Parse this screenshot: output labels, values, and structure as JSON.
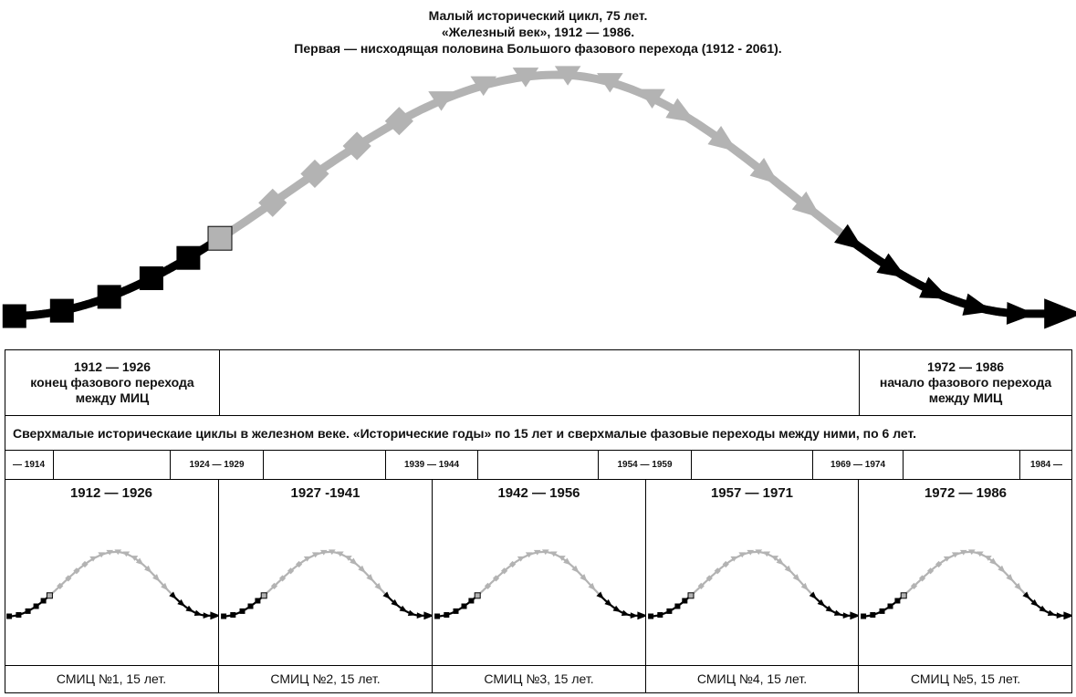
{
  "title": {
    "line1": "Малый исторический цикл, 75 лет.",
    "line2": "«Железный век», 1912 — 1986.",
    "line3": "Первая — нисходящая половина Большого фазового перехода (1912 - 2061)."
  },
  "phase_end": {
    "years": "1912 — 1926",
    "line1": "конец фазового перехода",
    "line2": "между МИЦ"
  },
  "phase_start": {
    "years": "1972 — 1986",
    "line1": "начало фазового перехода",
    "line2": "между МИЦ"
  },
  "super_small_text": "Сверхмалые историческаие циклы в железном  веке.  «Исторические годы» по 15 лет и сверхмалые фазовые переходы между ними,   по 6 лет.",
  "transitions": [
    "— 1914",
    "1924 — 1929",
    "1939 — 1944",
    "1954 — 1959",
    "1969 — 1974",
    "1984 —"
  ],
  "cycles": [
    {
      "years": "1912 — 1926",
      "label": "СМИЦ №1, 15 лет."
    },
    {
      "years": "1927 -1941",
      "label": "СМИЦ №2, 15 лет."
    },
    {
      "years": "1942 — 1956",
      "label": "СМИЦ №3, 15 лет."
    },
    {
      "years": "1957 — 1971",
      "label": "СМИЦ №4, 15 лет."
    },
    {
      "years": "1972 — 1986",
      "label": "СМИЦ №5, 15 лет."
    }
  ],
  "colors": {
    "dark": "#000000",
    "light": "#b3b3b3"
  }
}
